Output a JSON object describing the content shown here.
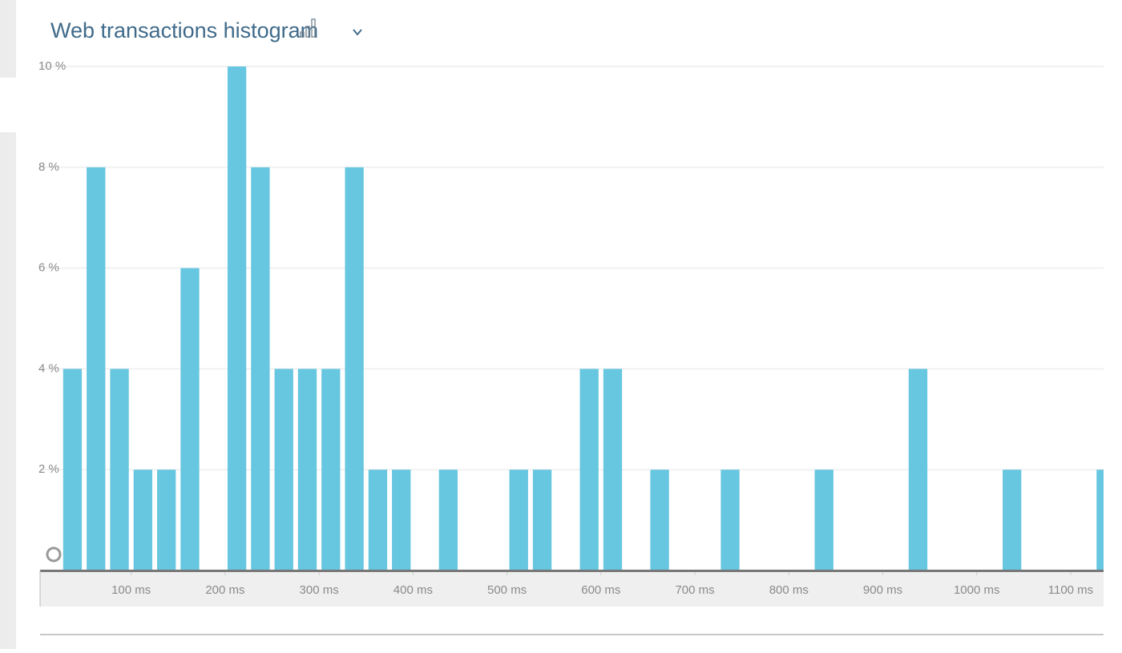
{
  "chart_data": {
    "type": "histogram",
    "title": "Web transactions histogram",
    "bins": [
      25,
      50,
      75,
      100,
      125,
      150,
      175,
      200,
      225,
      250,
      275,
      300,
      325,
      350,
      375,
      400,
      425,
      450,
      475,
      500,
      525,
      550,
      575,
      600,
      625,
      650,
      675,
      700,
      725,
      750,
      775,
      800,
      825,
      850,
      875,
      900,
      925,
      950,
      975,
      1000,
      1025,
      1050,
      1075,
      1100,
      1125,
      1150
    ],
    "values": [
      4,
      8,
      4,
      2,
      2,
      6,
      0,
      10,
      8,
      4,
      4,
      4,
      8,
      2,
      2,
      0,
      2,
      0,
      0,
      2,
      2,
      0,
      4,
      4,
      0,
      2,
      0,
      0,
      2,
      0,
      0,
      0,
      2,
      0,
      0,
      0,
      4,
      0,
      0,
      0,
      2,
      0,
      0,
      0,
      2
    ],
    "color": "#67c6e0",
    "xlim": [
      3,
      1135
    ],
    "xticks": [
      {
        "value": 100,
        "label": "100 ms"
      },
      {
        "value": 200,
        "label": "200 ms"
      },
      {
        "value": 300,
        "label": "300 ms"
      },
      {
        "value": 400,
        "label": "400 ms"
      },
      {
        "value": 500,
        "label": "500 ms"
      },
      {
        "value": 600,
        "label": "600 ms"
      },
      {
        "value": 700,
        "label": "700 ms"
      },
      {
        "value": 800,
        "label": "800 ms"
      },
      {
        "value": 900,
        "label": "900 ms"
      },
      {
        "value": 1000,
        "label": "1000 ms"
      },
      {
        "value": 1100,
        "label": "1100 ms"
      }
    ],
    "ylim": [
      0,
      10
    ],
    "yticks": [
      {
        "value": 2,
        "label": "2 %"
      },
      {
        "value": 4,
        "label": "4 %"
      },
      {
        "value": 6,
        "label": "6 %"
      },
      {
        "value": 8,
        "label": "8 %"
      },
      {
        "value": 10,
        "label": "10 %"
      }
    ],
    "grid": true
  }
}
